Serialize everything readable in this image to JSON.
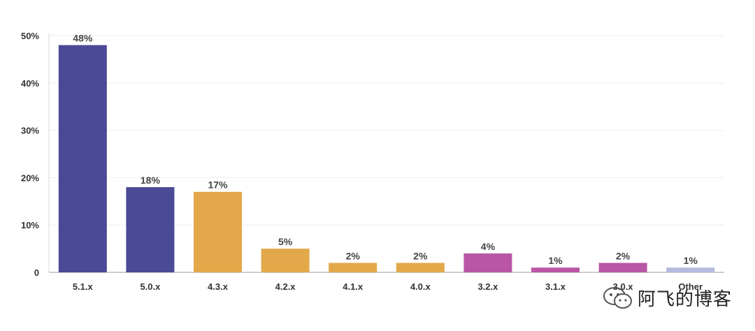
{
  "chart_data": {
    "type": "bar",
    "categories": [
      "5.1.x",
      "5.0.x",
      "4.3.x",
      "4.2.x",
      "4.1.x",
      "4.0.x",
      "3.2.x",
      "3.1.x",
      "3.0.x",
      "Other"
    ],
    "values": [
      48,
      18,
      17,
      5,
      2,
      2,
      4,
      1,
      2,
      1
    ],
    "data_labels": [
      "48%",
      "18%",
      "17%",
      "5%",
      "2%",
      "2%",
      "4%",
      "1%",
      "2%",
      "1%"
    ],
    "bar_colors": [
      "#4b4a96",
      "#4b4a96",
      "#e3a84a",
      "#e3a84a",
      "#e3a84a",
      "#e3a84a",
      "#b957a5",
      "#b957a5",
      "#b957a5",
      "#b4bbdf"
    ],
    "y_ticks": [
      0,
      10,
      20,
      30,
      40,
      50
    ],
    "y_tick_labels": [
      "0",
      "10%",
      "20%",
      "30%",
      "40%",
      "50%"
    ],
    "ylim": [
      0,
      50
    ],
    "grid": true,
    "title": "",
    "xlabel": "",
    "ylabel": ""
  },
  "watermark": {
    "text": "阿飞的博客",
    "icon": "wechat-icon"
  }
}
